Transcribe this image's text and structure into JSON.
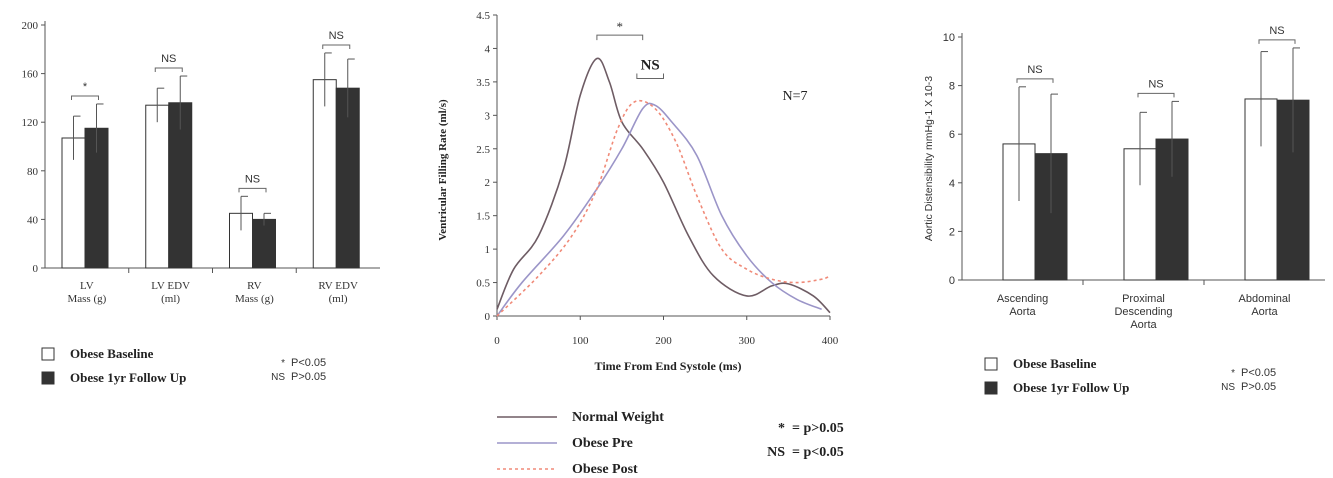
{
  "colors": {
    "baseline_fill": "#ffffff",
    "followup_fill": "#333333",
    "axis": "#555555",
    "sig_bracket": "#666666"
  },
  "chart_data": [
    {
      "type": "bar",
      "title": "",
      "ylim": [
        0,
        200
      ],
      "yticks": [
        "0",
        "40",
        "80",
        "120",
        "160",
        "200"
      ],
      "categories": [
        {
          "line1": "LV",
          "line2": "Mass (g)"
        },
        {
          "line1": "LV EDV",
          "line2": "(ml)"
        },
        {
          "line1": "RV",
          "line2": "Mass (g)"
        },
        {
          "line1": "RV EDV",
          "line2": "(ml)"
        }
      ],
      "series": [
        {
          "name": "Obese Baseline",
          "values": [
            107,
            134,
            45,
            155
          ],
          "errors": [
            18,
            14,
            14,
            22
          ]
        },
        {
          "name": "Obese 1yr Follow Up",
          "values": [
            115,
            136,
            40,
            148
          ],
          "errors": [
            20,
            22,
            5,
            24
          ]
        }
      ],
      "significance": [
        "*",
        "NS",
        "NS",
        "NS"
      ],
      "legend": {
        "items": [
          "Obese Baseline",
          "Obese 1yr Follow Up"
        ],
        "notes": [
          {
            "sym": "*",
            "text": "P<0.05"
          },
          {
            "sym": "NS",
            "text": "P>0.05"
          }
        ]
      }
    },
    {
      "type": "line",
      "title": "",
      "xlabel": "Time From End Systole (ms)",
      "ylabel": "Ventricular Filling Rate (ml/s)",
      "xlim": [
        0,
        400
      ],
      "ylim": [
        0,
        4.5
      ],
      "xticks": [
        "0",
        "100",
        "200",
        "300",
        "400"
      ],
      "yticks": [
        "0",
        "0.5",
        "1",
        "1.5",
        "2",
        "2.5",
        "3",
        "3.5",
        "4",
        "4.5"
      ],
      "annotation": "N=7",
      "significance": [
        {
          "label": "*",
          "x_from": 120,
          "x_to": 175,
          "y": 4.2
        },
        {
          "label": "NS",
          "x_from": 168,
          "x_to": 200,
          "y": 3.55
        }
      ],
      "series": [
        {
          "name": "Normal Weight",
          "color": "#6e5c64",
          "style": "solid",
          "points": [
            [
              0,
              0.1
            ],
            [
              20,
              0.7
            ],
            [
              50,
              1.2
            ],
            [
              80,
              2.2
            ],
            [
              100,
              3.3
            ],
            [
              120,
              3.85
            ],
            [
              135,
              3.5
            ],
            [
              150,
              2.9
            ],
            [
              175,
              2.5
            ],
            [
              200,
              2.0
            ],
            [
              230,
              1.2
            ],
            [
              260,
              0.6
            ],
            [
              300,
              0.3
            ],
            [
              330,
              0.45
            ],
            [
              350,
              0.48
            ],
            [
              380,
              0.3
            ],
            [
              400,
              0.05
            ]
          ]
        },
        {
          "name": "Obese Pre",
          "color": "#9b95c8",
          "style": "solid",
          "points": [
            [
              0,
              0.0
            ],
            [
              30,
              0.5
            ],
            [
              80,
              1.2
            ],
            [
              120,
              1.9
            ],
            [
              150,
              2.5
            ],
            [
              175,
              3.1
            ],
            [
              190,
              3.15
            ],
            [
              210,
              2.9
            ],
            [
              240,
              2.4
            ],
            [
              270,
              1.5
            ],
            [
              300,
              0.9
            ],
            [
              330,
              0.5
            ],
            [
              360,
              0.25
            ],
            [
              390,
              0.1
            ]
          ]
        },
        {
          "name": "Obese Post",
          "color": "#f08a78",
          "style": "dashed",
          "points": [
            [
              0,
              0.0
            ],
            [
              50,
              0.6
            ],
            [
              90,
              1.2
            ],
            [
              120,
              1.9
            ],
            [
              145,
              2.8
            ],
            [
              165,
              3.2
            ],
            [
              190,
              3.1
            ],
            [
              215,
              2.6
            ],
            [
              240,
              1.8
            ],
            [
              270,
              1.0
            ],
            [
              300,
              0.7
            ],
            [
              330,
              0.55
            ],
            [
              360,
              0.5
            ],
            [
              390,
              0.55
            ],
            [
              400,
              0.6
            ]
          ]
        }
      ],
      "legend": {
        "items": [
          "Normal Weight",
          "Obese Pre",
          "Obese Post"
        ],
        "notes": [
          {
            "sym": "*",
            "text": "= p>0.05"
          },
          {
            "sym": "NS",
            "text": "= p<0.05"
          }
        ]
      }
    },
    {
      "type": "bar",
      "title": "",
      "ylabel": "Aortic Distensibility mmHg-1 X 10-3",
      "ylim": [
        0,
        10
      ],
      "yticks": [
        "0",
        "2",
        "4",
        "6",
        "8",
        "10"
      ],
      "categories": [
        {
          "line1": "Ascending",
          "line2": "Aorta",
          "line3": ""
        },
        {
          "line1": "Proximal",
          "line2": "Descending",
          "line3": "Aorta"
        },
        {
          "line1": "Abdominal",
          "line2": "Aorta",
          "line3": ""
        }
      ],
      "series": [
        {
          "name": "Obese Baseline",
          "values": [
            5.6,
            5.4,
            7.45
          ],
          "errors": [
            2.35,
            1.5,
            1.95
          ]
        },
        {
          "name": "Obese 1yr Follow Up",
          "values": [
            5.2,
            5.8,
            7.4
          ],
          "errors": [
            2.45,
            1.55,
            2.15
          ]
        }
      ],
      "significance": [
        "NS",
        "NS",
        "NS"
      ],
      "legend": {
        "items": [
          "Obese Baseline",
          "Obese 1yr Follow Up"
        ],
        "notes": [
          {
            "sym": "*",
            "text": "P<0.05"
          },
          {
            "sym": "NS",
            "text": "P>0.05"
          }
        ]
      }
    }
  ]
}
